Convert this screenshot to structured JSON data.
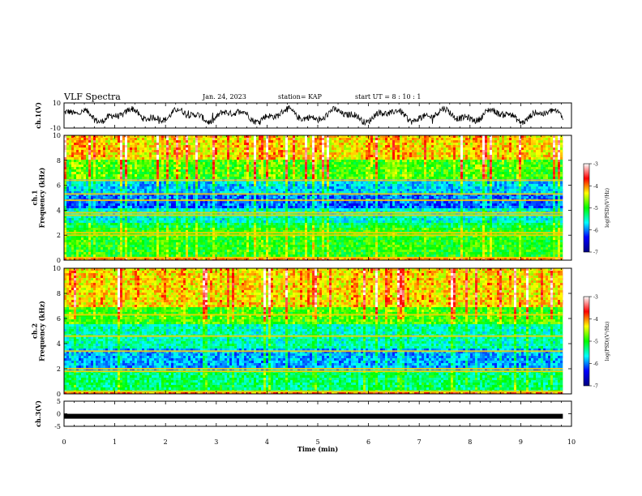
{
  "header": {
    "title": "VLF Spectra",
    "date": "Jan. 24, 2023",
    "station": "station= KAP",
    "start": "start  UT =  8 : 10 : 1"
  },
  "chart_data": [
    {
      "type": "line",
      "panel": "ch1-waveform",
      "ylabel": "ch.1(V)",
      "ylim": [
        -10,
        10
      ],
      "yticks": [
        "10",
        "-10"
      ],
      "xlim": [
        0,
        10
      ],
      "data_extent_min": [
        0,
        9.83
      ],
      "signal": "noisy waveform oscillating roughly between -6 and 6 V",
      "color": "#000000"
    },
    {
      "type": "heatmap",
      "panel": "ch1-spectrogram",
      "ylabel": "ch.1\nFrequency (kHz)",
      "ylim": [
        0,
        10
      ],
      "yticks": [
        "0",
        "2",
        "4",
        "6",
        "8",
        "10"
      ],
      "xlim": [
        0,
        10
      ],
      "data_extent_min": [
        0,
        9.83
      ],
      "colorbar": {
        "label": "log(PSD)(V²/Hz)",
        "range": [
          -7,
          -3
        ],
        "ticks": [
          "-3",
          "-4",
          "-5",
          "-6",
          "-7"
        ],
        "colors": [
          "#000080",
          "#0000ff",
          "#00ffff",
          "#00ff00",
          "#ffff00",
          "#ff0000",
          "#ffffff"
        ]
      },
      "bands": [
        {
          "freq_khz": [
            8.0,
            10.0
          ],
          "level": -4.3
        },
        {
          "freq_khz": [
            6.4,
            8.0
          ],
          "level": -4.9
        },
        {
          "freq_khz": [
            5.4,
            6.4
          ],
          "level": -5.8
        },
        {
          "freq_khz": [
            4.2,
            5.4
          ],
          "level": -6.1
        },
        {
          "freq_khz": [
            3.0,
            4.2
          ],
          "level": -5.6
        },
        {
          "freq_khz": [
            2.6,
            3.0
          ],
          "level": -5.2
        },
        {
          "freq_khz": [
            0.2,
            2.6
          ],
          "level": -5.0
        },
        {
          "freq_khz": [
            0.0,
            0.2
          ],
          "level": -4.0
        }
      ],
      "lines_khz": [
        6.4,
        5.3,
        4.8,
        3.8,
        3.6,
        2.2,
        2.0,
        0.2
      ]
    },
    {
      "type": "heatmap",
      "panel": "ch2-spectrogram",
      "ylabel": "ch.2\nFrequency (kHz)",
      "ylim": [
        0,
        10
      ],
      "yticks": [
        "0",
        "2",
        "4",
        "6",
        "8",
        "10"
      ],
      "xlim": [
        0,
        10
      ],
      "data_extent_min": [
        0,
        9.83
      ],
      "colorbar": {
        "label": "log(PSD)(V²/Hz)",
        "range": [
          -7,
          -3
        ],
        "ticks": [
          "-3",
          "-4",
          "-5",
          "-6",
          "-7"
        ],
        "colors": [
          "#000080",
          "#0000ff",
          "#00ffff",
          "#00ff00",
          "#ffff00",
          "#ff0000",
          "#ffffff"
        ]
      },
      "bands": [
        {
          "freq_khz": [
            7.0,
            10.0
          ],
          "level": -4.3
        },
        {
          "freq_khz": [
            5.6,
            7.0
          ],
          "level": -4.9
        },
        {
          "freq_khz": [
            3.6,
            5.6
          ],
          "level": -5.5
        },
        {
          "freq_khz": [
            1.8,
            3.6
          ],
          "level": -5.9
        },
        {
          "freq_khz": [
            0.2,
            1.8
          ],
          "level": -5.3
        },
        {
          "freq_khz": [
            0.0,
            0.2
          ],
          "level": -4.0
        }
      ],
      "lines_khz": [
        6.3,
        4.6,
        3.4,
        2.0,
        1.8,
        0.2
      ]
    },
    {
      "type": "line",
      "panel": "ch3-waveform",
      "ylabel": "ch.3(V)",
      "ylim": [
        -5,
        5
      ],
      "yticks": [
        "5",
        "0",
        "-5"
      ],
      "xlim": [
        0,
        10
      ],
      "data_extent_min": [
        0,
        9.83
      ],
      "signal": "flat thick band near -1 V",
      "level_v": -1.0,
      "color": "#000000"
    }
  ],
  "xaxis": {
    "label": "Time (min)",
    "ticks": [
      "0",
      "1",
      "2",
      "3",
      "4",
      "5",
      "6",
      "7",
      "8",
      "9",
      "10"
    ]
  }
}
